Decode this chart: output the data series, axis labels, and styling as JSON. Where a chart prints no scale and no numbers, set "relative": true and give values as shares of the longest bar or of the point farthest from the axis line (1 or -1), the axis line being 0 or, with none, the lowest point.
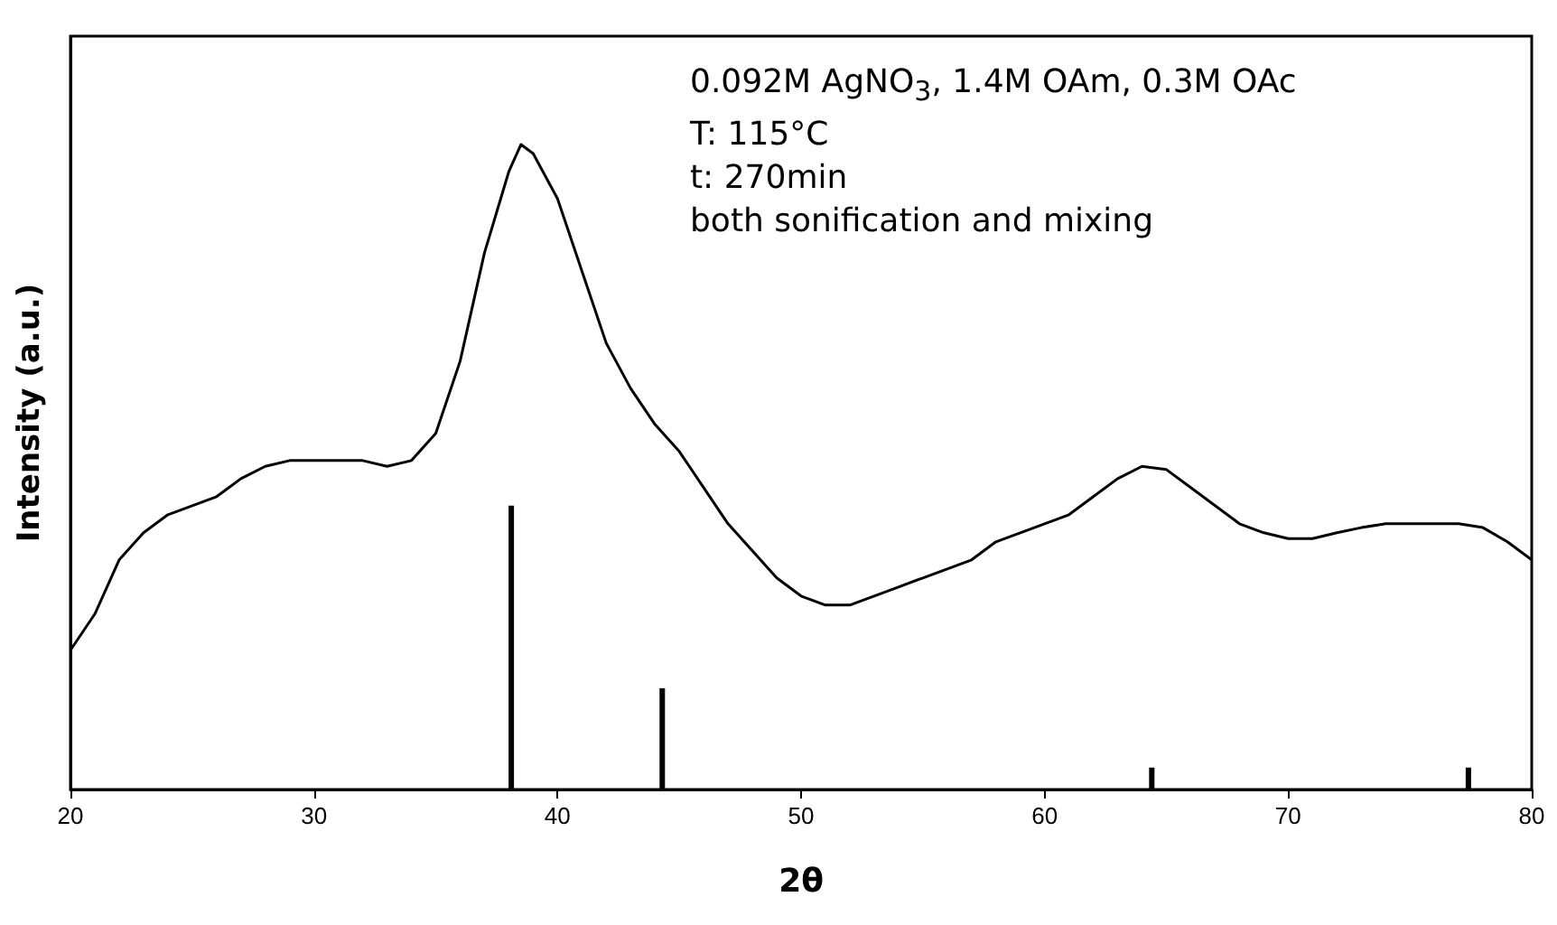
{
  "chart_data": {
    "type": "line",
    "relative": true,
    "xlabel": "2θ",
    "ylabel": "Intensity (a.u.)",
    "annotations": [
      "0.092M AgNO$_{3}$, 1.4M OAm, 0.3M OAc",
      "T: 115°C",
      "t: 270min",
      "both sonification and mixing"
    ],
    "xlim": [
      20,
      80
    ],
    "xticks": [
      20,
      30,
      40,
      50,
      60,
      70,
      80
    ],
    "grid": false,
    "marker": "none",
    "line_style": "solid",
    "series": [
      {
        "color": "#000000",
        "x": [
          20,
          21,
          22,
          23,
          24,
          25,
          26,
          27,
          28,
          29,
          30,
          31,
          32,
          33,
          34,
          35,
          36,
          37,
          38,
          38.5,
          39,
          40,
          41,
          42,
          43,
          44,
          45,
          46,
          47,
          48,
          49,
          50,
          51,
          52,
          53,
          54,
          55,
          56,
          57,
          58,
          59,
          60,
          61,
          62,
          63,
          64,
          65,
          66,
          67,
          68,
          69,
          70,
          71,
          72,
          73,
          74,
          75,
          76,
          77,
          78,
          79,
          80
        ],
        "values": [
          0.216,
          0.272,
          0.356,
          0.398,
          0.426,
          0.44,
          0.454,
          0.482,
          0.501,
          0.51,
          0.51,
          0.51,
          0.51,
          0.501,
          0.51,
          0.552,
          0.664,
          0.832,
          0.958,
          1,
          0.986,
          0.916,
          0.804,
          0.692,
          0.622,
          0.566,
          0.524,
          0.468,
          0.412,
          0.37,
          0.328,
          0.3,
          0.286,
          0.286,
          0.3,
          0.314,
          0.328,
          0.342,
          0.356,
          0.384,
          0.398,
          0.412,
          0.426,
          0.454,
          0.482,
          0.501,
          0.496,
          0.468,
          0.44,
          0.412,
          0.398,
          0.389,
          0.389,
          0.398,
          0.406,
          0.412,
          0.412,
          0.412,
          0.412,
          0.406,
          0.384,
          0.356
        ]
      },
      {
        "type": "bar",
        "color": "#000000",
        "x": [
          38.1,
          44.3,
          64.4,
          77.4
        ],
        "values": [
          0.44,
          0.157,
          0.034,
          0.034
        ]
      }
    ]
  }
}
